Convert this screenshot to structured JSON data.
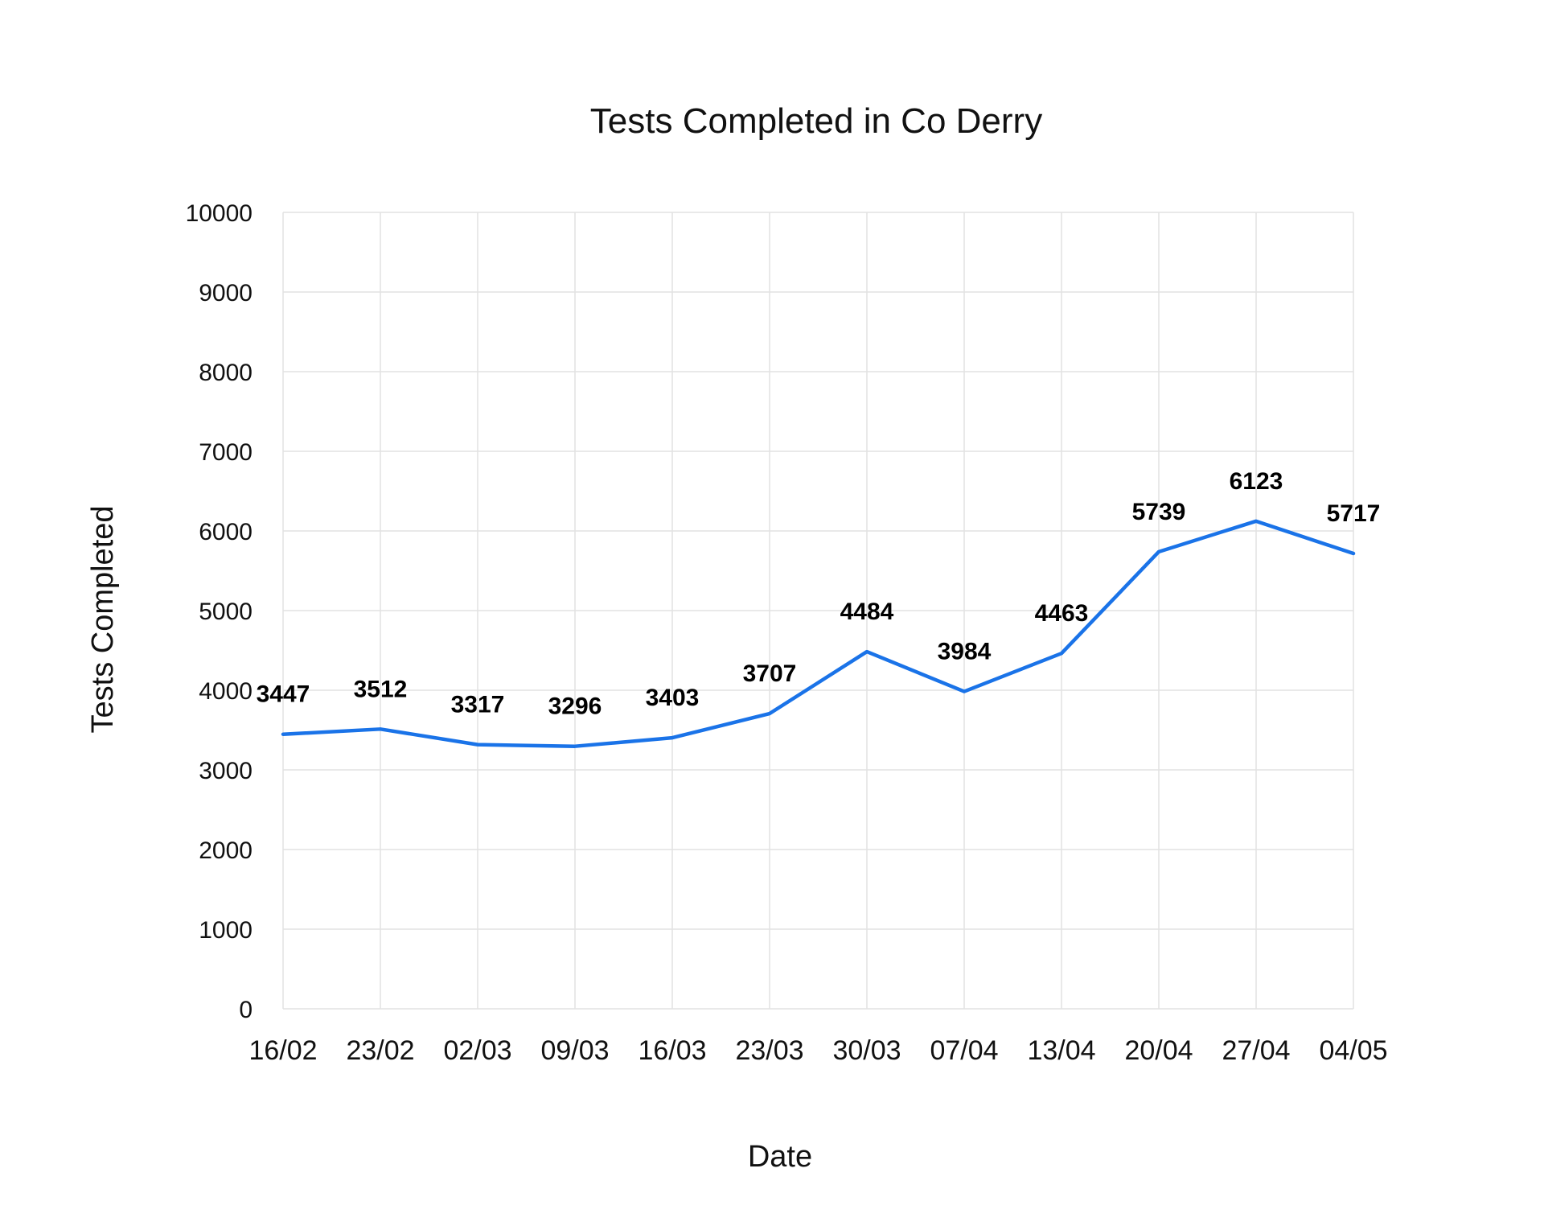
{
  "chart_data": {
    "type": "line",
    "title": "Tests Completed in Co Derry",
    "xlabel": "Date",
    "ylabel": "Tests Completed",
    "categories": [
      "16/02",
      "23/02",
      "02/03",
      "09/03",
      "16/03",
      "23/03",
      "30/03",
      "07/04",
      "13/04",
      "20/04",
      "27/04",
      "04/05"
    ],
    "series": [
      {
        "values": [
          3447,
          3512,
          3317,
          3296,
          3403,
          3707,
          4484,
          3984,
          4463,
          5739,
          6123,
          5717
        ],
        "color": "#1a73e8"
      }
    ],
    "ylim": [
      0,
      10000
    ],
    "yticks": [
      "0",
      "1000",
      "2000",
      "3000",
      "4000",
      "5000",
      "6000",
      "7000",
      "8000",
      "9000",
      "10000"
    ],
    "data_labels": [
      "3447",
      "3512",
      "3317",
      "3296",
      "3403",
      "3707",
      "4484",
      "3984",
      "4463",
      "5739",
      "6123",
      "5717"
    ],
    "grid": true,
    "legend": "none"
  }
}
